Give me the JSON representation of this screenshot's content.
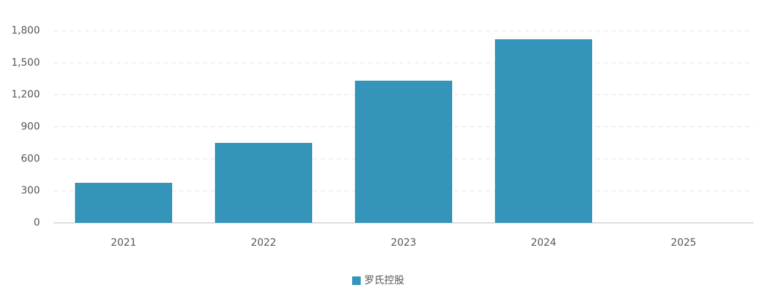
{
  "chart_data": {
    "type": "bar",
    "categories": [
      "2021",
      "2022",
      "2023",
      "2024",
      "2025"
    ],
    "series": [
      {
        "name": "罗氏控股",
        "color": "#3594b9",
        "values": [
          375,
          749,
          1332,
          1720,
          null
        ]
      }
    ],
    "ylim": [
      0,
      1800
    ],
    "yticks": [
      0,
      300,
      600,
      900,
      {
        "value": 1200,
        "label": "1,200"
      },
      {
        "value": 1500,
        "label": "1,500"
      },
      {
        "value": 1800,
        "label": "1,800"
      }
    ],
    "grid": true,
    "legend": "bottom"
  }
}
